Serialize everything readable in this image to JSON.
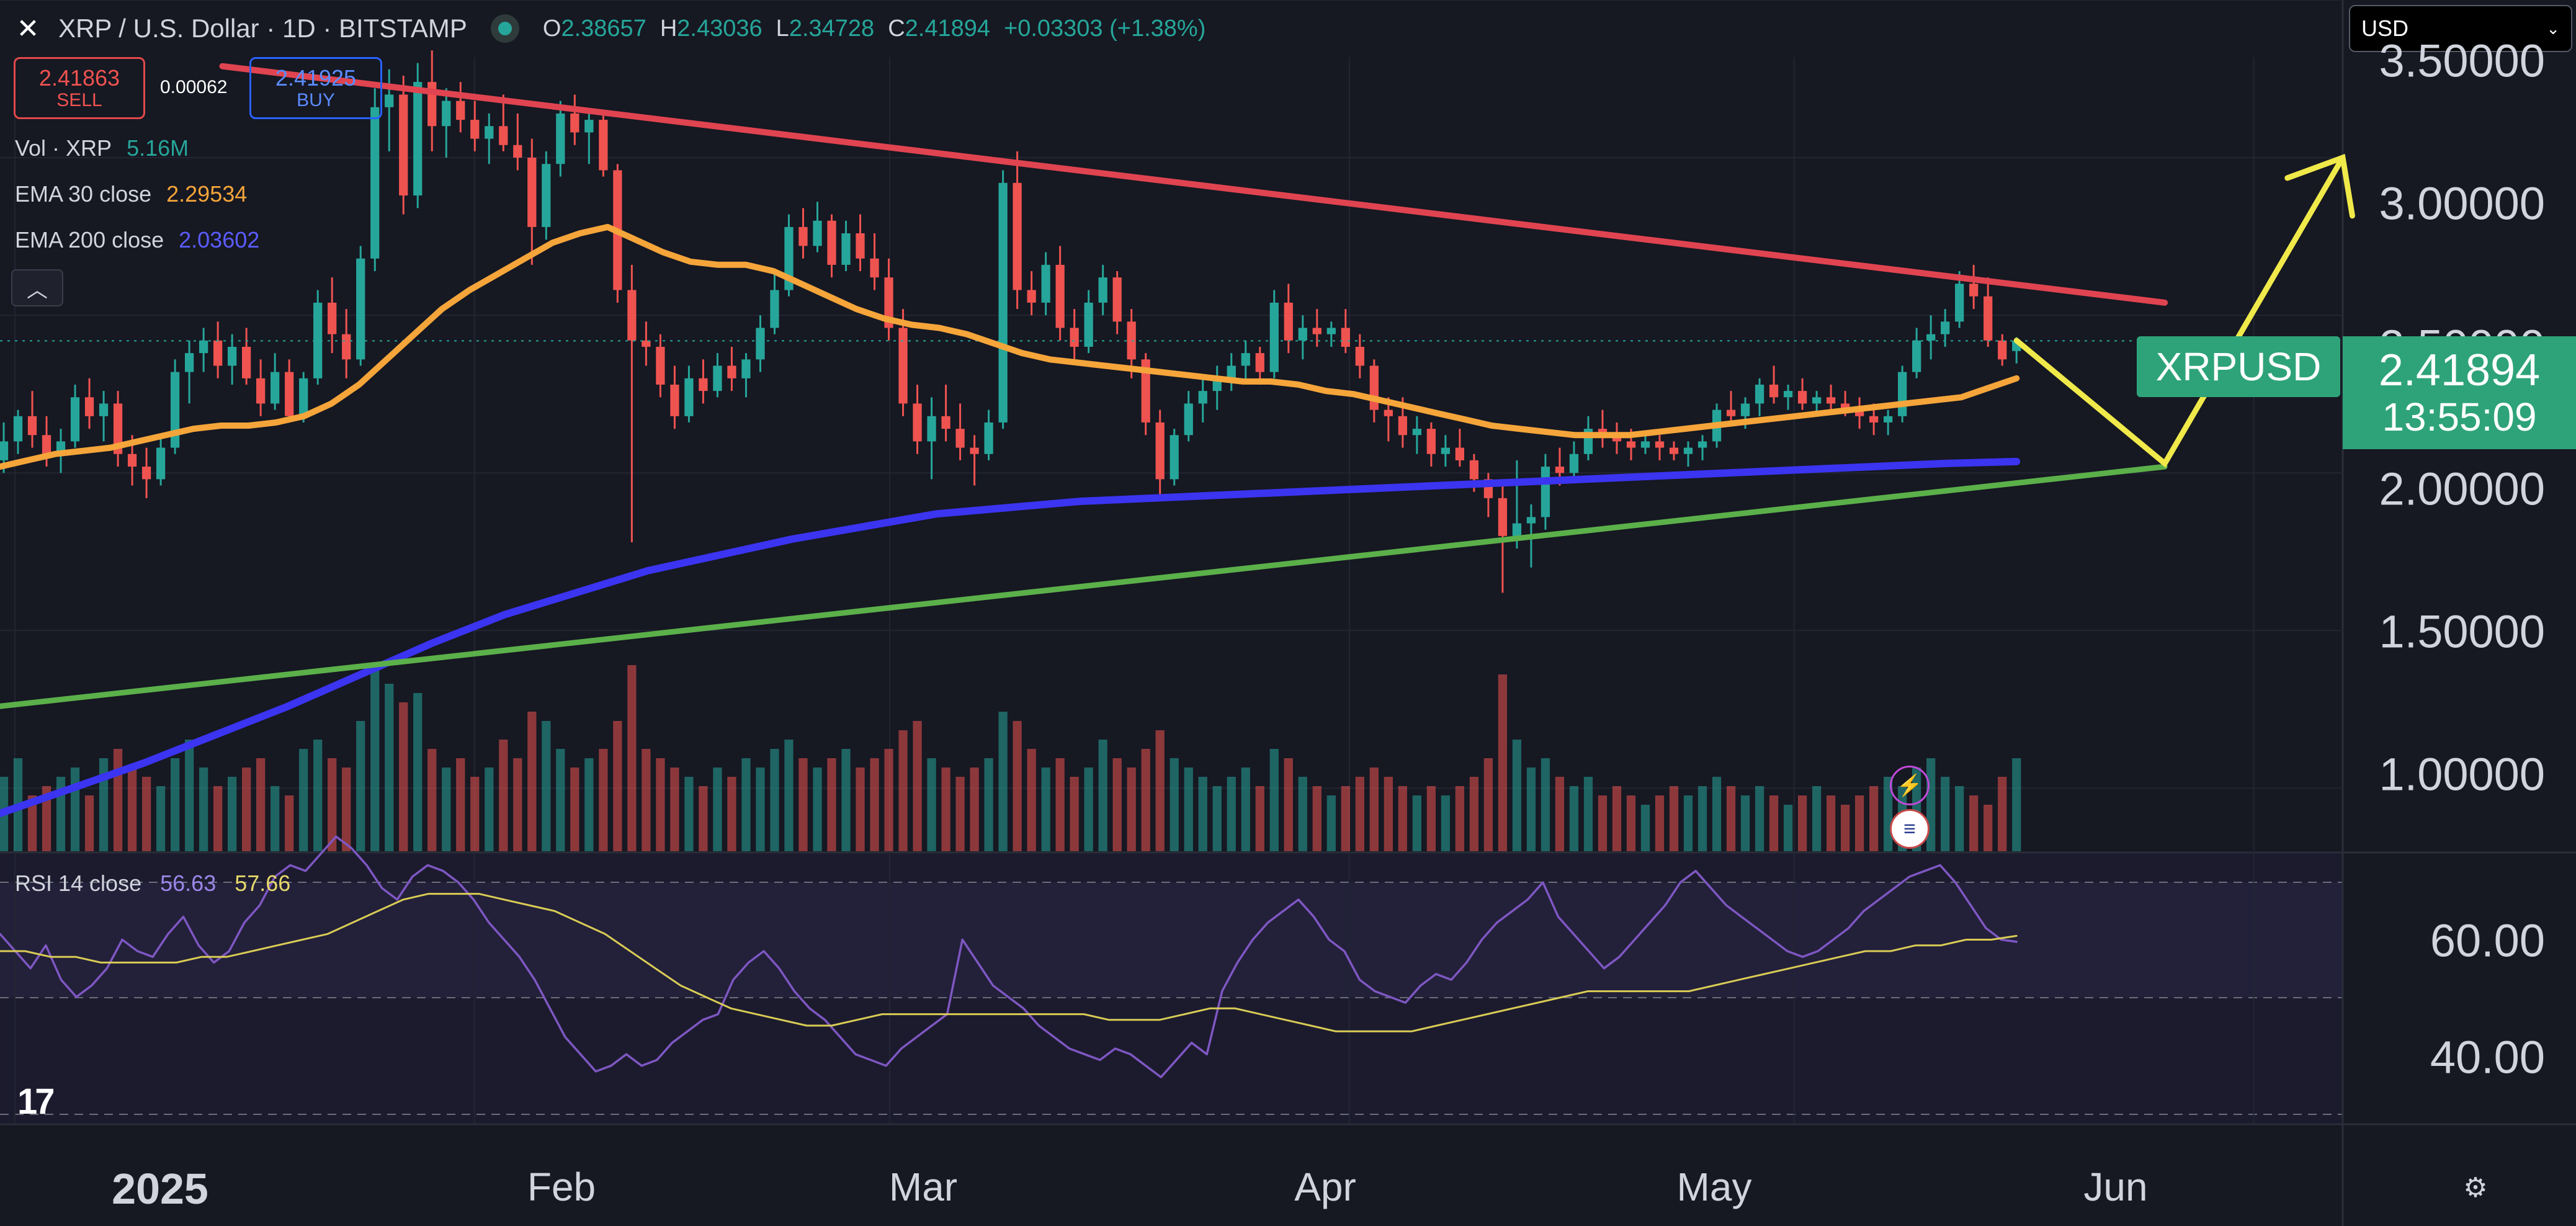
{
  "header": {
    "symbol_title": "XRP / U.S. Dollar · 1D · BITSTAMP",
    "o_label": "O",
    "o_value": "2.38657",
    "h_label": "H",
    "h_value": "2.43036",
    "l_label": "L",
    "l_value": "2.34728",
    "c_label": "C",
    "c_value": "2.41894",
    "change": "+0.03303 (+1.38%)"
  },
  "currency": {
    "value": "USD"
  },
  "trade": {
    "sell_price": "2.41863",
    "sell_label": "SELL",
    "spread": "0.00062",
    "buy_price": "2.41925",
    "buy_label": "BUY"
  },
  "legend": {
    "vol_label": "Vol · XRP",
    "vol_value": "5.16M",
    "ema30_label": "EMA 30 close",
    "ema30_value": "2.29534",
    "ema200_label": "EMA 200 close",
    "ema200_value": "2.03602",
    "rsi_label": "RSI 14 close",
    "rsi_value": "56.63",
    "rsi_ma_value": "57.66"
  },
  "price_scale": [
    "3.50000",
    "3.00000",
    "2.50000",
    "2.00000",
    "1.50000",
    "1.00000"
  ],
  "rsi_scale": [
    "60.00",
    "40.00"
  ],
  "last_price": {
    "symbol": "XRPUSD",
    "price": "2.41894",
    "countdown": "13:55:09"
  },
  "time_axis": [
    "2025",
    "Feb",
    "Mar",
    "Apr",
    "May",
    "Jun"
  ],
  "colors": {
    "up": "#26a69a",
    "down": "#ef5350",
    "ema30": "#f5a53a",
    "ema200": "#3b34f0",
    "resistance": "#e04450",
    "support": "#5bb04a",
    "projection": "#f0e94a",
    "rsi": "#7e57c2"
  },
  "icons": {
    "close": "close-icon",
    "settings": "gear-icon",
    "logo": "tradingview-logo",
    "collapse": "chevron-up-icon"
  },
  "chart_data": {
    "type": "candlestick",
    "title": "XRP / U.S. Dollar · 1D · BITSTAMP",
    "x_range": [
      "2024-12-31",
      "2025-06-07"
    ],
    "ylim": [
      0.8,
      3.5
    ],
    "candles": [
      [
        2.04,
        2.16,
        2.0,
        2.1
      ],
      [
        2.1,
        2.2,
        2.06,
        2.18
      ],
      [
        2.18,
        2.26,
        2.08,
        2.12
      ],
      [
        2.12,
        2.18,
        2.02,
        2.06
      ],
      [
        2.06,
        2.14,
        2.0,
        2.1
      ],
      [
        2.1,
        2.28,
        2.08,
        2.24
      ],
      [
        2.24,
        2.3,
        2.14,
        2.18
      ],
      [
        2.18,
        2.26,
        2.1,
        2.22
      ],
      [
        2.22,
        2.26,
        2.02,
        2.06
      ],
      [
        2.06,
        2.12,
        1.96,
        2.02
      ],
      [
        2.02,
        2.08,
        1.92,
        1.98
      ],
      [
        1.98,
        2.12,
        1.96,
        2.08
      ],
      [
        2.08,
        2.36,
        2.06,
        2.32
      ],
      [
        2.32,
        2.42,
        2.22,
        2.38
      ],
      [
        2.38,
        2.46,
        2.32,
        2.42
      ],
      [
        2.42,
        2.48,
        2.3,
        2.34
      ],
      [
        2.34,
        2.44,
        2.28,
        2.4
      ],
      [
        2.4,
        2.46,
        2.28,
        2.3
      ],
      [
        2.3,
        2.36,
        2.18,
        2.22
      ],
      [
        2.22,
        2.38,
        2.2,
        2.32
      ],
      [
        2.32,
        2.36,
        2.16,
        2.18
      ],
      [
        2.18,
        2.32,
        2.16,
        2.3
      ],
      [
        2.3,
        2.58,
        2.28,
        2.54
      ],
      [
        2.54,
        2.62,
        2.38,
        2.44
      ],
      [
        2.44,
        2.52,
        2.3,
        2.36
      ],
      [
        2.36,
        2.72,
        2.34,
        2.68
      ],
      [
        2.68,
        3.22,
        2.64,
        3.16
      ],
      [
        3.16,
        3.28,
        3.02,
        3.2
      ],
      [
        3.2,
        3.26,
        2.82,
        2.88
      ],
      [
        2.88,
        3.3,
        2.84,
        3.24
      ],
      [
        3.24,
        3.34,
        3.02,
        3.1
      ],
      [
        3.1,
        3.22,
        3.0,
        3.18
      ],
      [
        3.18,
        3.24,
        3.08,
        3.12
      ],
      [
        3.12,
        3.18,
        3.02,
        3.06
      ],
      [
        3.06,
        3.14,
        2.98,
        3.1
      ],
      [
        3.1,
        3.2,
        3.02,
        3.04
      ],
      [
        3.04,
        3.14,
        2.96,
        3.0
      ],
      [
        3.0,
        3.06,
        2.66,
        2.78
      ],
      [
        2.78,
        3.02,
        2.74,
        2.98
      ],
      [
        2.98,
        3.18,
        2.94,
        3.14
      ],
      [
        3.14,
        3.2,
        3.04,
        3.08
      ],
      [
        3.08,
        3.14,
        2.98,
        3.12
      ],
      [
        3.12,
        3.14,
        2.94,
        2.96
      ],
      [
        2.96,
        2.98,
        2.54,
        2.58
      ],
      [
        2.58,
        2.66,
        1.78,
        2.42
      ],
      [
        2.42,
        2.48,
        2.34,
        2.4
      ],
      [
        2.4,
        2.44,
        2.24,
        2.28
      ],
      [
        2.28,
        2.34,
        2.14,
        2.18
      ],
      [
        2.18,
        2.34,
        2.16,
        2.3
      ],
      [
        2.3,
        2.36,
        2.22,
        2.26
      ],
      [
        2.26,
        2.38,
        2.24,
        2.34
      ],
      [
        2.34,
        2.4,
        2.26,
        2.3
      ],
      [
        2.3,
        2.38,
        2.24,
        2.36
      ],
      [
        2.36,
        2.5,
        2.32,
        2.46
      ],
      [
        2.46,
        2.64,
        2.44,
        2.58
      ],
      [
        2.58,
        2.82,
        2.56,
        2.78
      ],
      [
        2.78,
        2.84,
        2.68,
        2.72
      ],
      [
        2.72,
        2.86,
        2.7,
        2.8
      ],
      [
        2.8,
        2.82,
        2.62,
        2.66
      ],
      [
        2.66,
        2.8,
        2.64,
        2.76
      ],
      [
        2.76,
        2.82,
        2.64,
        2.68
      ],
      [
        2.68,
        2.76,
        2.58,
        2.62
      ],
      [
        2.62,
        2.68,
        2.42,
        2.46
      ],
      [
        2.46,
        2.52,
        2.18,
        2.22
      ],
      [
        2.22,
        2.28,
        2.06,
        2.1
      ],
      [
        2.1,
        2.24,
        1.98,
        2.18
      ],
      [
        2.18,
        2.28,
        2.1,
        2.14
      ],
      [
        2.14,
        2.22,
        2.04,
        2.08
      ],
      [
        2.08,
        2.12,
        1.96,
        2.06
      ],
      [
        2.06,
        2.2,
        2.04,
        2.16
      ],
      [
        2.16,
        2.96,
        2.14,
        2.92
      ],
      [
        2.92,
        3.02,
        2.52,
        2.58
      ],
      [
        2.58,
        2.64,
        2.5,
        2.54
      ],
      [
        2.54,
        2.7,
        2.5,
        2.66
      ],
      [
        2.66,
        2.72,
        2.42,
        2.46
      ],
      [
        2.46,
        2.52,
        2.36,
        2.4
      ],
      [
        2.4,
        2.58,
        2.38,
        2.54
      ],
      [
        2.54,
        2.66,
        2.5,
        2.62
      ],
      [
        2.62,
        2.64,
        2.44,
        2.48
      ],
      [
        2.48,
        2.52,
        2.3,
        2.36
      ],
      [
        2.36,
        2.38,
        2.12,
        2.16
      ],
      [
        2.16,
        2.2,
        1.92,
        1.98
      ],
      [
        1.98,
        2.14,
        1.96,
        2.12
      ],
      [
        2.12,
        2.26,
        2.1,
        2.22
      ],
      [
        2.22,
        2.3,
        2.16,
        2.26
      ],
      [
        2.26,
        2.34,
        2.2,
        2.3
      ],
      [
        2.3,
        2.38,
        2.26,
        2.34
      ],
      [
        2.34,
        2.42,
        2.3,
        2.38
      ],
      [
        2.38,
        2.4,
        2.28,
        2.32
      ],
      [
        2.32,
        2.58,
        2.3,
        2.54
      ],
      [
        2.54,
        2.6,
        2.38,
        2.42
      ],
      [
        2.42,
        2.5,
        2.36,
        2.46
      ],
      [
        2.46,
        2.52,
        2.4,
        2.44
      ],
      [
        2.44,
        2.48,
        2.4,
        2.46
      ],
      [
        2.46,
        2.52,
        2.38,
        2.4
      ],
      [
        2.4,
        2.44,
        2.3,
        2.34
      ],
      [
        2.34,
        2.36,
        2.16,
        2.2
      ],
      [
        2.2,
        2.24,
        2.1,
        2.18
      ],
      [
        2.18,
        2.24,
        2.08,
        2.12
      ],
      [
        2.12,
        2.18,
        2.06,
        2.14
      ],
      [
        2.14,
        2.16,
        2.02,
        2.06
      ],
      [
        2.06,
        2.12,
        2.02,
        2.08
      ],
      [
        2.08,
        2.14,
        2.02,
        2.04
      ],
      [
        2.04,
        2.06,
        1.94,
        1.98
      ],
      [
        1.98,
        2.0,
        1.86,
        1.92
      ],
      [
        1.92,
        1.98,
        1.62,
        1.8
      ],
      [
        1.8,
        2.04,
        1.76,
        1.84
      ],
      [
        1.84,
        1.9,
        1.7,
        1.86
      ],
      [
        1.86,
        2.06,
        1.82,
        2.02
      ],
      [
        2.02,
        2.08,
        1.96,
        2.0
      ],
      [
        2.0,
        2.1,
        1.98,
        2.06
      ],
      [
        2.06,
        2.18,
        2.04,
        2.14
      ],
      [
        2.14,
        2.2,
        2.08,
        2.12
      ],
      [
        2.12,
        2.16,
        2.06,
        2.1
      ],
      [
        2.1,
        2.14,
        2.04,
        2.08
      ],
      [
        2.08,
        2.12,
        2.06,
        2.1
      ],
      [
        2.1,
        2.12,
        2.04,
        2.08
      ],
      [
        2.08,
        2.1,
        2.04,
        2.06
      ],
      [
        2.06,
        2.1,
        2.02,
        2.08
      ],
      [
        2.08,
        2.12,
        2.04,
        2.1
      ],
      [
        2.1,
        2.22,
        2.08,
        2.2
      ],
      [
        2.2,
        2.26,
        2.16,
        2.18
      ],
      [
        2.18,
        2.24,
        2.14,
        2.22
      ],
      [
        2.22,
        2.3,
        2.18,
        2.28
      ],
      [
        2.28,
        2.34,
        2.22,
        2.24
      ],
      [
        2.24,
        2.28,
        2.2,
        2.26
      ],
      [
        2.26,
        2.3,
        2.2,
        2.22
      ],
      [
        2.22,
        2.26,
        2.18,
        2.24
      ],
      [
        2.24,
        2.28,
        2.2,
        2.22
      ],
      [
        2.22,
        2.26,
        2.18,
        2.2
      ],
      [
        2.2,
        2.24,
        2.14,
        2.18
      ],
      [
        2.18,
        2.22,
        2.12,
        2.16
      ],
      [
        2.16,
        2.2,
        2.12,
        2.18
      ],
      [
        2.18,
        2.34,
        2.16,
        2.32
      ],
      [
        2.32,
        2.46,
        2.3,
        2.42
      ],
      [
        2.42,
        2.5,
        2.36,
        2.44
      ],
      [
        2.44,
        2.52,
        2.4,
        2.48
      ],
      [
        2.48,
        2.64,
        2.46,
        2.6
      ],
      [
        2.6,
        2.66,
        2.52,
        2.56
      ],
      [
        2.56,
        2.62,
        2.4,
        2.42
      ],
      [
        2.42,
        2.44,
        2.34,
        2.36
      ],
      [
        2.38657,
        2.43036,
        2.34728,
        2.41894
      ]
    ],
    "volume": [
      0.4,
      0.5,
      0.3,
      0.35,
      0.4,
      0.45,
      0.3,
      0.5,
      0.55,
      0.45,
      0.4,
      0.35,
      0.5,
      0.6,
      0.45,
      0.35,
      0.4,
      0.45,
      0.5,
      0.35,
      0.3,
      0.55,
      0.6,
      0.5,
      0.45,
      0.7,
      1.0,
      0.9,
      0.8,
      0.85,
      0.55,
      0.45,
      0.5,
      0.4,
      0.45,
      0.6,
      0.5,
      0.75,
      0.7,
      0.55,
      0.45,
      0.5,
      0.55,
      0.7,
      1.0,
      0.55,
      0.5,
      0.45,
      0.4,
      0.35,
      0.45,
      0.4,
      0.5,
      0.45,
      0.55,
      0.6,
      0.5,
      0.45,
      0.5,
      0.55,
      0.45,
      0.5,
      0.55,
      0.65,
      0.7,
      0.5,
      0.45,
      0.4,
      0.45,
      0.5,
      0.75,
      0.7,
      0.55,
      0.45,
      0.5,
      0.4,
      0.45,
      0.6,
      0.5,
      0.45,
      0.55,
      0.65,
      0.5,
      0.45,
      0.4,
      0.35,
      0.4,
      0.45,
      0.35,
      0.55,
      0.5,
      0.4,
      0.35,
      0.3,
      0.35,
      0.4,
      0.45,
      0.4,
      0.35,
      0.3,
      0.35,
      0.3,
      0.35,
      0.4,
      0.5,
      0.95,
      0.6,
      0.45,
      0.5,
      0.4,
      0.35,
      0.4,
      0.3,
      0.35,
      0.3,
      0.25,
      0.3,
      0.35,
      0.3,
      0.35,
      0.4,
      0.35,
      0.3,
      0.35,
      0.3,
      0.25,
      0.3,
      0.35,
      0.3,
      0.25,
      0.3,
      0.35,
      0.4,
      0.35,
      0.45,
      0.5,
      0.4,
      0.35,
      0.3,
      0.25
    ],
    "ema30": [
      2.02,
      2.04,
      2.06,
      2.07,
      2.08,
      2.1,
      2.12,
      2.14,
      2.15,
      2.15,
      2.16,
      2.18,
      2.22,
      2.28,
      2.36,
      2.44,
      2.52,
      2.58,
      2.63,
      2.68,
      2.73,
      2.76,
      2.78,
      2.74,
      2.7,
      2.67,
      2.66,
      2.66,
      2.64,
      2.6,
      2.56,
      2.52,
      2.49,
      2.47,
      2.46,
      2.44,
      2.41,
      2.38,
      2.36,
      2.35,
      2.34,
      2.33,
      2.32,
      2.31,
      2.3,
      2.29,
      2.29,
      2.28,
      2.26,
      2.25,
      2.23,
      2.21,
      2.19,
      2.17,
      2.15,
      2.14,
      2.13,
      2.12,
      2.12,
      2.12,
      2.13,
      2.14,
      2.15,
      2.16,
      2.17,
      2.18,
      2.19,
      2.2,
      2.21,
      2.22,
      2.23,
      2.24,
      2.27,
      2.3
    ],
    "ema200": [
      0.92,
      1.0,
      1.08,
      1.17,
      1.26,
      1.36,
      1.46,
      1.55,
      1.62,
      1.69,
      1.74,
      1.79,
      1.83,
      1.87,
      1.89,
      1.91,
      1.92,
      1.93,
      1.94,
      1.95,
      1.96,
      1.97,
      1.98,
      1.99,
      2.0,
      2.01,
      2.02,
      2.03,
      2.036
    ],
    "trendlines": {
      "resistance": [
        [
          "2025-01-15",
          3.29
        ],
        [
          "2025-05-26",
          2.54
        ]
      ],
      "support": [
        [
          "2024-12-31",
          1.26
        ],
        [
          "2025-05-26",
          2.02
        ]
      ],
      "projection": [
        [
          "2025-05-16",
          2.42
        ],
        [
          "2025-05-26",
          2.03
        ],
        [
          "2025-06-07",
          3.0
        ]
      ]
    },
    "rsi": [
      58,
      55,
      52,
      56,
      50,
      47,
      49,
      52,
      57,
      55,
      54,
      58,
      61,
      56,
      53,
      55,
      60,
      63,
      68,
      70,
      69,
      72,
      75,
      73,
      70,
      66,
      64,
      68,
      70,
      69,
      67,
      64,
      60,
      57,
      54,
      50,
      45,
      40,
      37,
      34,
      35,
      37,
      35,
      36,
      39,
      41,
      43,
      44,
      50,
      53,
      55,
      52,
      48,
      45,
      43,
      40,
      37,
      36,
      35,
      38,
      40,
      42,
      44,
      57,
      53,
      49,
      47,
      45,
      42,
      40,
      38,
      37,
      36,
      38,
      37,
      35,
      33,
      36,
      39,
      37,
      48,
      53,
      57,
      60,
      62,
      64,
      61,
      57,
      55,
      50,
      48,
      47,
      46,
      49,
      51,
      50,
      53,
      57,
      60,
      62,
      64,
      67,
      61,
      58,
      55,
      52,
      54,
      57,
      60,
      63,
      67,
      69,
      66,
      63,
      61,
      59,
      57,
      55,
      54,
      55,
      57,
      59,
      62,
      64,
      66,
      68,
      69,
      70,
      67,
      63,
      59,
      57,
      56.63
    ],
    "rsi_ma": [
      55,
      55,
      54,
      54,
      53,
      53,
      53,
      53,
      54,
      54,
      55,
      56,
      57,
      58,
      60,
      62,
      64,
      65,
      65,
      65,
      64,
      63,
      62,
      60,
      58,
      55,
      52,
      49,
      47,
      45,
      44,
      43,
      42,
      42,
      43,
      44,
      44,
      44,
      44,
      44,
      44,
      44,
      44,
      44,
      43,
      43,
      43,
      44,
      45,
      45,
      44,
      43,
      42,
      41,
      41,
      41,
      41,
      42,
      43,
      44,
      45,
      46,
      47,
      48,
      48,
      48,
      48,
      48,
      49,
      50,
      51,
      52,
      53,
      54,
      55,
      55,
      56,
      56,
      57,
      57,
      57.66
    ],
    "rsi_ylim": [
      25,
      72
    ]
  }
}
